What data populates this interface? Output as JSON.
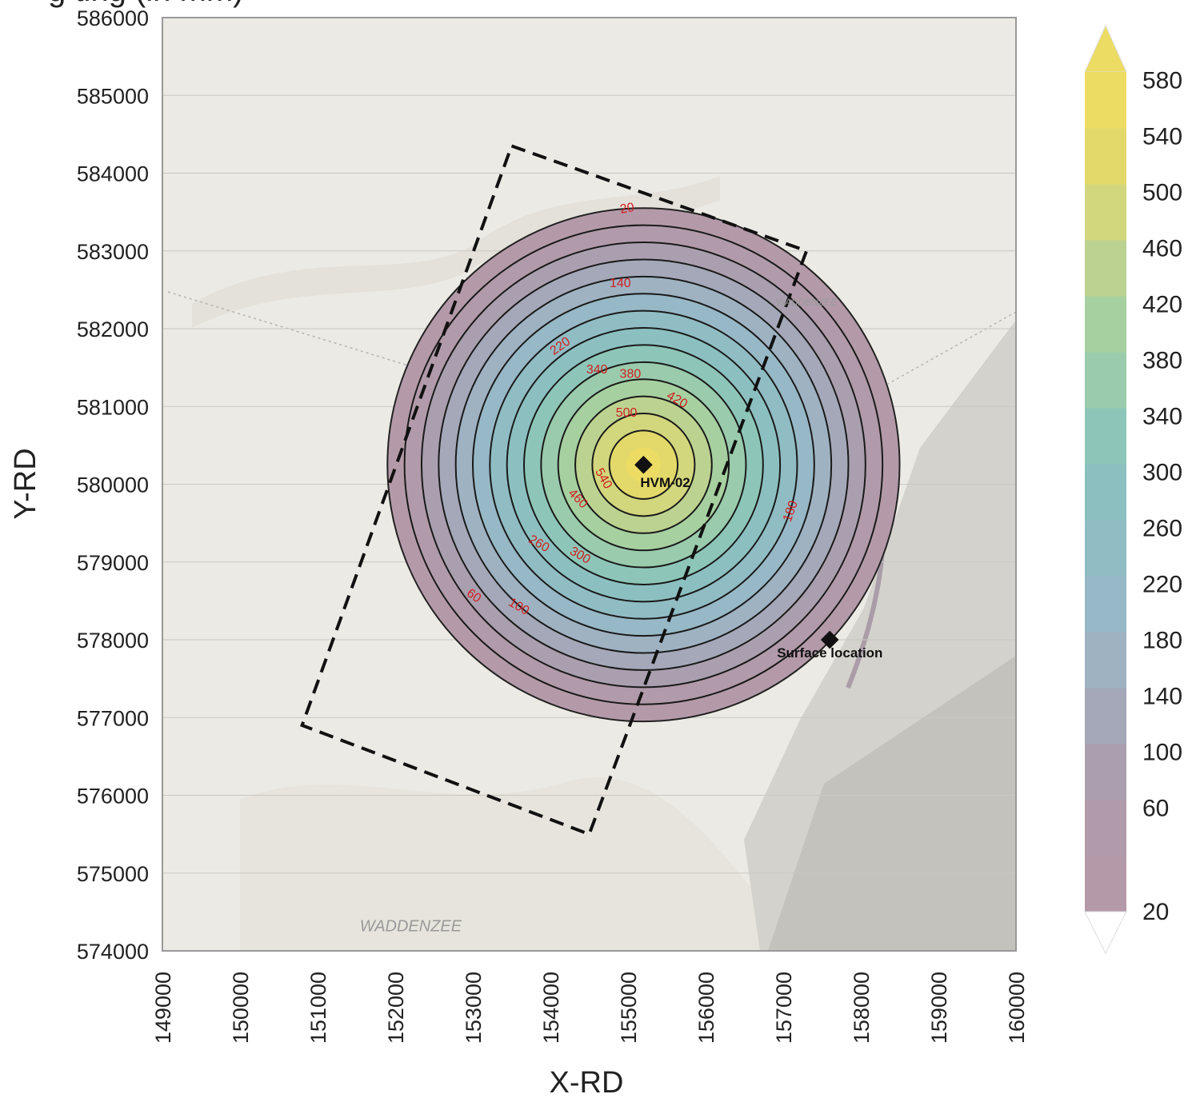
{
  "title_visible_fragment": "g                       ting (in mm)",
  "chart_data": {
    "type": "contour",
    "title": "",
    "xlabel": "X-RD",
    "ylabel": "Y-RD",
    "xlim": [
      149000,
      160000
    ],
    "ylim": [
      574000,
      586000
    ],
    "x_ticks": [
      "149000",
      "150000",
      "151000",
      "152000",
      "153000",
      "154000",
      "155000",
      "156000",
      "157000",
      "158000",
      "159000",
      "160000"
    ],
    "y_ticks": [
      "586000",
      "585000",
      "584000",
      "583000",
      "582000",
      "581000",
      "580000",
      "579000",
      "578000",
      "577000",
      "576000",
      "575000",
      "574000"
    ],
    "center": [
      155200,
      580250
    ],
    "contour_levels": [
      20,
      60,
      100,
      140,
      180,
      220,
      260,
      300,
      340,
      380,
      420,
      460,
      500,
      540,
      580
    ],
    "max_value_mm": 580,
    "outer_radius_rd": 3300,
    "contour_labels": [
      {
        "text": "20",
        "x": 154990,
        "y": 583540,
        "angle": -10
      },
      {
        "text": "140",
        "x": 154900,
        "y": 582580,
        "angle": 0
      },
      {
        "text": "220",
        "x": 154130,
        "y": 581770,
        "angle": -35
      },
      {
        "text": "340",
        "x": 154600,
        "y": 581470,
        "angle": 0
      },
      {
        "text": "380",
        "x": 155030,
        "y": 581410,
        "angle": 0
      },
      {
        "text": "420",
        "x": 155630,
        "y": 581080,
        "angle": 30
      },
      {
        "text": "500",
        "x": 154980,
        "y": 580910,
        "angle": 0
      },
      {
        "text": "540",
        "x": 154680,
        "y": 580070,
        "angle": 60
      },
      {
        "text": "460",
        "x": 154350,
        "y": 579810,
        "angle": 45
      },
      {
        "text": "260",
        "x": 153850,
        "y": 579230,
        "angle": 30
      },
      {
        "text": "300",
        "x": 154380,
        "y": 579080,
        "angle": 30
      },
      {
        "text": "60",
        "x": 153010,
        "y": 578560,
        "angle": 35
      },
      {
        "text": "100",
        "x": 153590,
        "y": 578420,
        "angle": 30
      },
      {
        "text": "180",
        "x": 157100,
        "y": 579650,
        "angle": -70
      }
    ],
    "points": [
      {
        "label": "HVM-02",
        "x": 155200,
        "y": 580250
      },
      {
        "label": "Surface location",
        "x": 157600,
        "y": 578000
      }
    ],
    "outline_polygon": [
      [
        153500,
        584350
      ],
      [
        157300,
        583000
      ],
      [
        154500,
        575500
      ],
      [
        150800,
        576900
      ]
    ],
    "map_labels": [
      {
        "text": "WADDENZEE",
        "x": 157300,
        "y": 582300
      },
      {
        "text": "WADDENZEE",
        "x": 152200,
        "y": 574250
      }
    ],
    "colorbar": {
      "labels": [
        "20",
        "60",
        "100",
        "140",
        "180",
        "220",
        "260",
        "300",
        "340",
        "380",
        "420",
        "460",
        "500",
        "540",
        "580"
      ],
      "colors": [
        "#b49aa9",
        "#b19aaa",
        "#aa9faf",
        "#a4a8b8",
        "#9eb2c2",
        "#97b8c6",
        "#90bcc4",
        "#8cc0c0",
        "#8dc6b8",
        "#99cbac",
        "#a6d0a0",
        "#bcd290",
        "#d2d67c",
        "#e3d96a",
        "#eddc64"
      ],
      "extend": "both"
    }
  }
}
